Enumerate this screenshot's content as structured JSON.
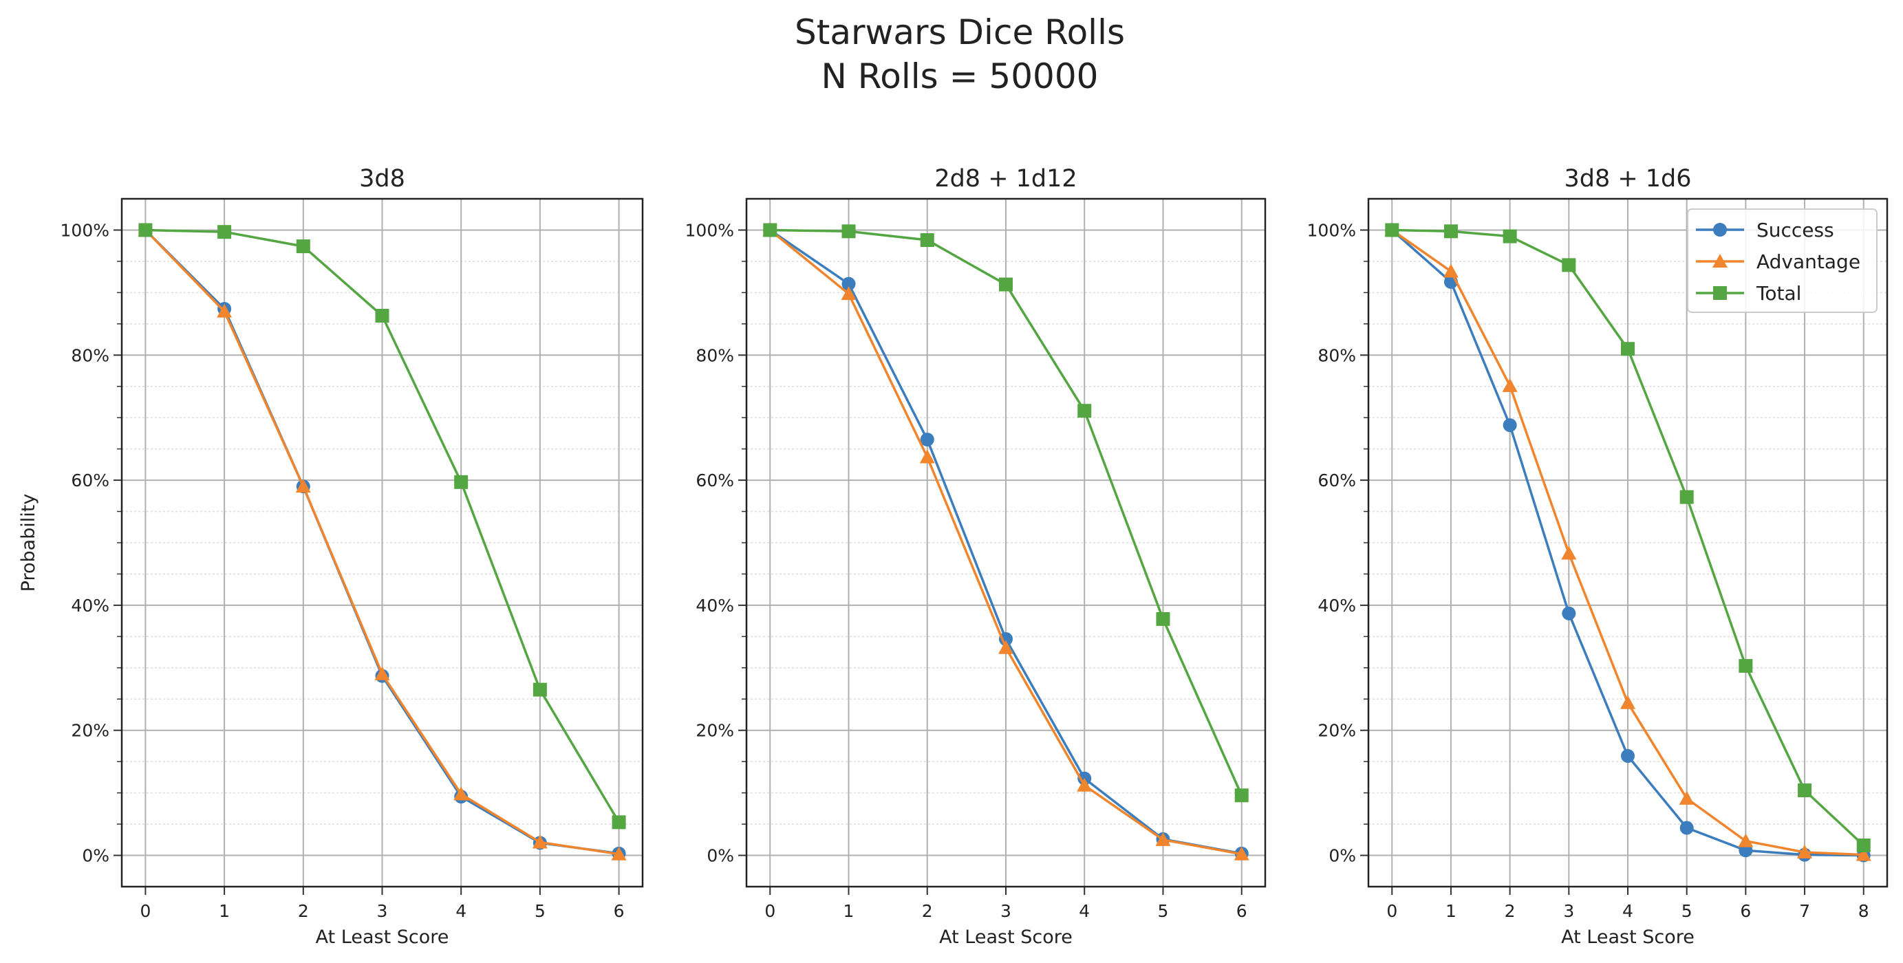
{
  "suptitle": [
    "Starwars Dice Rolls",
    "N Rolls = 50000"
  ],
  "colors": {
    "Success": "#3b7dbd",
    "Advantage": "#f0852d",
    "Total": "#53a641"
  },
  "markers": {
    "Success": "circle",
    "Advantage": "triangle",
    "Total": "square"
  },
  "chart_data": [
    {
      "type": "line",
      "title": "3d8",
      "xlabel": "At Least Score",
      "ylabel": "Probability",
      "x": [
        0,
        1,
        2,
        3,
        4,
        5,
        6
      ],
      "xlim": [
        -0.3,
        6.3
      ],
      "ylim": [
        -5,
        105
      ],
      "yticks": [
        0,
        20,
        40,
        60,
        80,
        100
      ],
      "ytick_labels": [
        "0%",
        "20%",
        "40%",
        "60%",
        "80%",
        "100%"
      ],
      "grid": true,
      "legend": null,
      "series": [
        {
          "name": "Success",
          "values": [
            100,
            87.4,
            59.0,
            28.7,
            9.4,
            2.0,
            0.3
          ]
        },
        {
          "name": "Advantage",
          "values": [
            100,
            87.0,
            59.0,
            29.0,
            9.8,
            2.1,
            0.2
          ]
        },
        {
          "name": "Total",
          "values": [
            100,
            99.7,
            97.4,
            86.3,
            59.7,
            26.5,
            5.3
          ]
        }
      ]
    },
    {
      "type": "line",
      "title": "2d8 + 1d12",
      "xlabel": "At Least Score",
      "ylabel": "",
      "x": [
        0,
        1,
        2,
        3,
        4,
        5,
        6
      ],
      "xlim": [
        -0.3,
        6.3
      ],
      "ylim": [
        -5,
        105
      ],
      "yticks": [
        0,
        20,
        40,
        60,
        80,
        100
      ],
      "ytick_labels": [
        "0%",
        "20%",
        "40%",
        "60%",
        "80%",
        "100%"
      ],
      "grid": true,
      "legend": null,
      "series": [
        {
          "name": "Success",
          "values": [
            100,
            91.4,
            66.5,
            34.6,
            12.3,
            2.6,
            0.3
          ]
        },
        {
          "name": "Advantage",
          "values": [
            100,
            89.8,
            63.7,
            33.2,
            11.2,
            2.5,
            0.2
          ]
        },
        {
          "name": "Total",
          "values": [
            100,
            99.8,
            98.4,
            91.3,
            71.1,
            37.8,
            9.6
          ]
        }
      ]
    },
    {
      "type": "line",
      "title": "3d8 + 1d6",
      "xlabel": "At Least Score",
      "ylabel": "",
      "x": [
        0,
        1,
        2,
        3,
        4,
        5,
        6,
        7,
        8
      ],
      "xlim": [
        -0.4,
        8.4
      ],
      "ylim": [
        -5,
        105
      ],
      "yticks": [
        0,
        20,
        40,
        60,
        80,
        100
      ],
      "ytick_labels": [
        "0%",
        "20%",
        "40%",
        "60%",
        "80%",
        "100%"
      ],
      "grid": true,
      "legend": "top-right",
      "series": [
        {
          "name": "Success",
          "values": [
            100,
            91.7,
            68.8,
            38.7,
            15.9,
            4.4,
            0.8,
            0.1,
            0.0
          ]
        },
        {
          "name": "Advantage",
          "values": [
            100,
            93.4,
            75.1,
            48.3,
            24.4,
            9.1,
            2.3,
            0.5,
            0.1
          ]
        },
        {
          "name": "Total",
          "values": [
            100,
            99.8,
            99.0,
            94.4,
            81.0,
            57.3,
            30.3,
            10.4,
            1.6
          ]
        }
      ]
    }
  ]
}
